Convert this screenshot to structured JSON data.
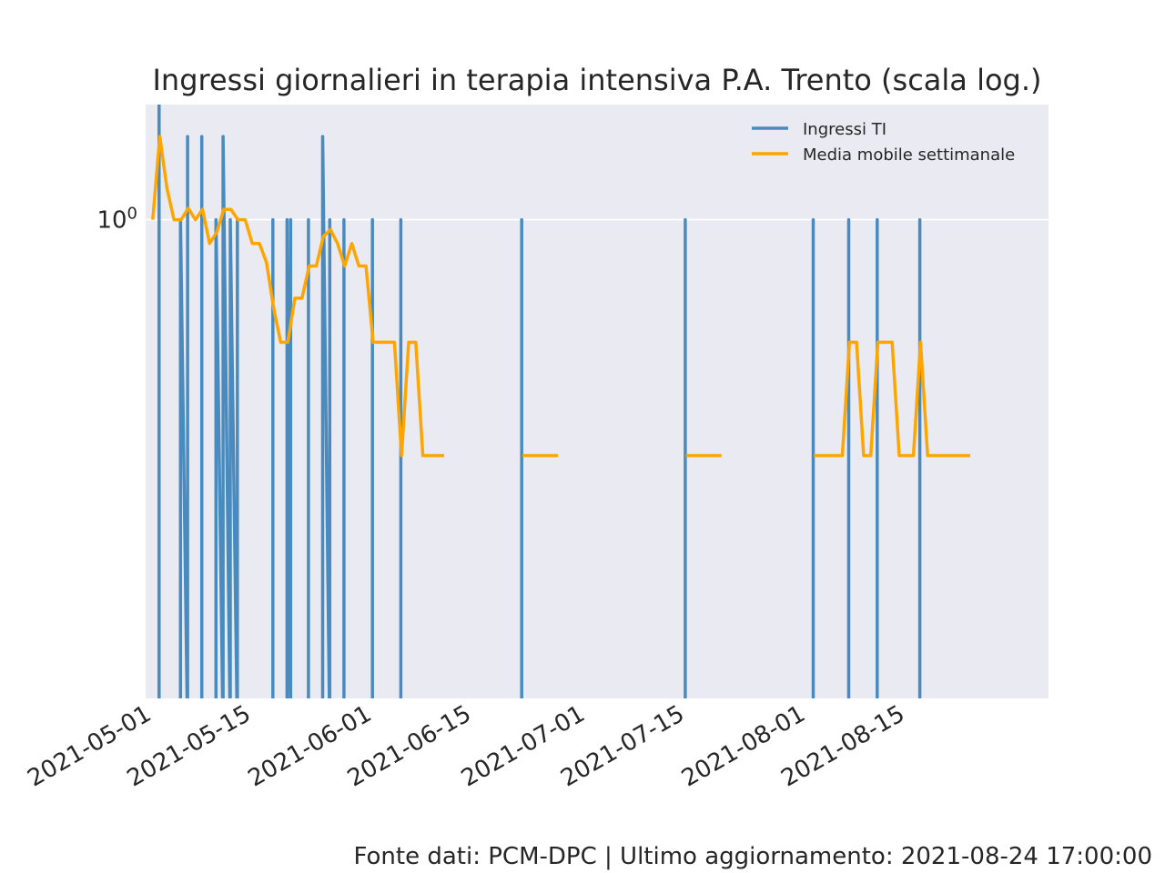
{
  "chart_data": {
    "type": "line",
    "title": "Ingressi giornalieri in terapia intensiva P.A. Trento (scala log.)",
    "xlabel": "",
    "ylabel": "",
    "yscale": "log",
    "ylim": [
      0.0185,
      2.61
    ],
    "y_ticks": [
      {
        "value": 1,
        "base": "10",
        "exp": "0"
      }
    ],
    "grid": true,
    "legend_position": "top-right",
    "x_start": "2021-05-01",
    "xlim_days": [
      -1.0,
      126.0
    ],
    "x_ticks": [
      {
        "label": "2021-05-01",
        "day": 0
      },
      {
        "label": "2021-05-15",
        "day": 14
      },
      {
        "label": "2021-06-01",
        "day": 31
      },
      {
        "label": "2021-06-15",
        "day": 45
      },
      {
        "label": "2021-07-01",
        "day": 61
      },
      {
        "label": "2021-07-15",
        "day": 75
      },
      {
        "label": "2021-08-01",
        "day": 92
      },
      {
        "label": "2021-08-15",
        "day": 106
      }
    ],
    "series": [
      {
        "name": "Ingressi TI",
        "color": "#4a8bbf",
        "points": [
          [
            0.9,
            3
          ],
          [
            3.9,
            1
          ],
          [
            4.9,
            2
          ],
          [
            6.9,
            2
          ],
          [
            8.9,
            1
          ],
          [
            9.9,
            2
          ],
          [
            10.9,
            1
          ],
          [
            11.9,
            1
          ],
          [
            16.9,
            1
          ],
          [
            18.9,
            1
          ],
          [
            19.4,
            1
          ],
          [
            21.9,
            1
          ],
          [
            23.9,
            2
          ],
          [
            24.9,
            1
          ],
          [
            26.9,
            1
          ],
          [
            30.9,
            1
          ],
          [
            34.9,
            1
          ],
          [
            51.9,
            1
          ],
          [
            74.9,
            1
          ],
          [
            92.9,
            1
          ],
          [
            97.9,
            1
          ],
          [
            101.9,
            1
          ],
          [
            107.9,
            1
          ]
        ]
      },
      {
        "name": "Media mobile settimanale",
        "color": "#ffa500",
        "points": [
          [
            0,
            1.0
          ],
          [
            1,
            2.0
          ],
          [
            2,
            1.3
          ],
          [
            3,
            1.0
          ],
          [
            4,
            1.0
          ],
          [
            5,
            1.1
          ],
          [
            6,
            1.0
          ],
          [
            7,
            1.09
          ],
          [
            8,
            0.82
          ],
          [
            9,
            0.9
          ],
          [
            10,
            1.09
          ],
          [
            11,
            1.09
          ],
          [
            12,
            1.0
          ],
          [
            13,
            1.0
          ],
          [
            14,
            0.82
          ],
          [
            15,
            0.82
          ],
          [
            16,
            0.7
          ],
          [
            17,
            0.48
          ],
          [
            18,
            0.36
          ],
          [
            19,
            0.36
          ],
          [
            20,
            0.52
          ],
          [
            21,
            0.52
          ],
          [
            22,
            0.68
          ],
          [
            23,
            0.68
          ],
          [
            24,
            0.87
          ],
          [
            25,
            0.92
          ],
          [
            26,
            0.82
          ],
          [
            27,
            0.68
          ],
          [
            28,
            0.82
          ],
          [
            29,
            0.68
          ],
          [
            30,
            0.68
          ],
          [
            31,
            0.36
          ],
          [
            32,
            0.36
          ],
          [
            33,
            0.36
          ],
          [
            34,
            0.36
          ],
          [
            35,
            0.14
          ],
          [
            36,
            0.36
          ],
          [
            37,
            0.36
          ],
          [
            38,
            0.14
          ],
          [
            39,
            0.14
          ],
          [
            40,
            0.14
          ],
          [
            41,
            0.14
          ],
          [
            42,
            null
          ],
          [
            52,
            0.14
          ],
          [
            53,
            0.14
          ],
          [
            54,
            0.14
          ],
          [
            55,
            0.14
          ],
          [
            56,
            0.14
          ],
          [
            57,
            0.14
          ],
          [
            58,
            null
          ],
          [
            75,
            0.14
          ],
          [
            76,
            0.14
          ],
          [
            77,
            0.14
          ],
          [
            78,
            0.14
          ],
          [
            79,
            0.14
          ],
          [
            80,
            0.14
          ],
          [
            81,
            null
          ],
          [
            93,
            0.14
          ],
          [
            94,
            0.14
          ],
          [
            95,
            0.14
          ],
          [
            96,
            0.14
          ],
          [
            97,
            0.14
          ],
          [
            98,
            0.36
          ],
          [
            99,
            0.36
          ],
          [
            100,
            0.14
          ],
          [
            101,
            0.14
          ],
          [
            102,
            0.36
          ],
          [
            103,
            0.36
          ],
          [
            104,
            0.36
          ],
          [
            105,
            0.14
          ],
          [
            106,
            0.14
          ],
          [
            107,
            0.14
          ],
          [
            108,
            0.36
          ],
          [
            109,
            0.14
          ],
          [
            110,
            0.14
          ],
          [
            111,
            0.14
          ],
          [
            112,
            0.14
          ],
          [
            113,
            0.14
          ],
          [
            114,
            0.14
          ],
          [
            115,
            0.14
          ],
          [
            116,
            null
          ]
        ]
      }
    ],
    "colors": {
      "plot_background": "#eaeaf2",
      "grid": "#ffffff",
      "text": "#262626"
    }
  },
  "footer": {
    "source": "Fonte dati: PCM-DPC | Ultimo aggiornamento: 2021-08-24 17:00:00"
  }
}
